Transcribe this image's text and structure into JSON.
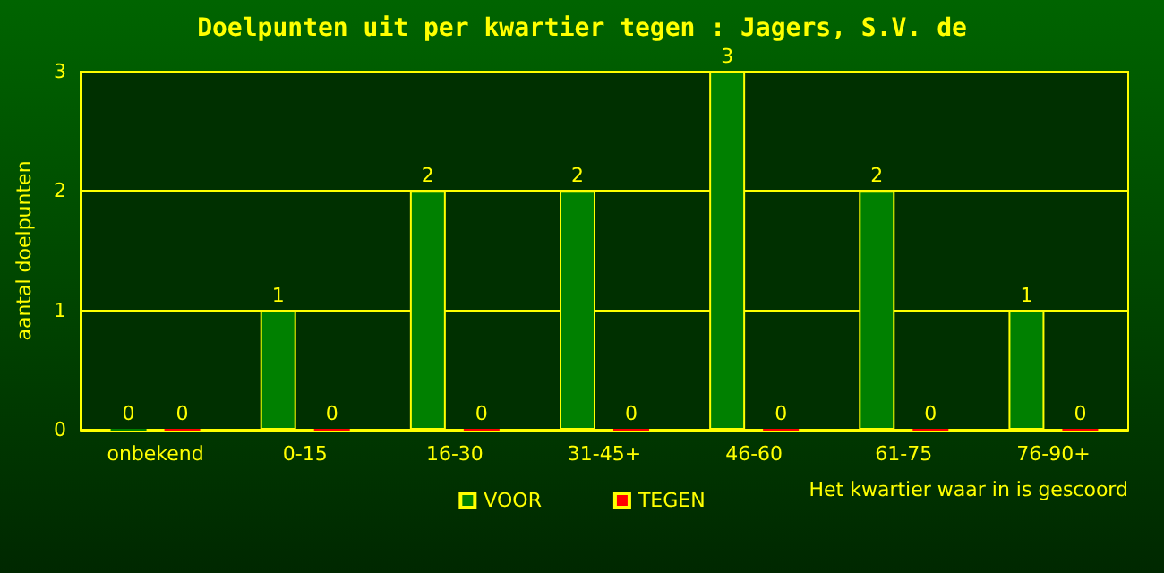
{
  "chart_data": {
    "type": "bar",
    "title": "Doelpunten uit per kwartier tegen : Jagers, S.V. de",
    "xlabel": "Het kwartier waar in is gescoord",
    "ylabel": "aantal doelpunten",
    "categories": [
      "onbekend",
      "0-15",
      "16-30",
      "31-45+",
      "46-60",
      "61-75",
      "76-90+"
    ],
    "series": [
      {
        "name": "VOOR",
        "color": "#008000",
        "values": [
          0,
          1,
          2,
          2,
          3,
          2,
          1
        ]
      },
      {
        "name": "TEGEN",
        "color": "#ff0000",
        "values": [
          0,
          0,
          0,
          0,
          0,
          0,
          0
        ]
      }
    ],
    "ylim": [
      0,
      3
    ],
    "yticks": [
      0,
      1,
      2,
      3
    ],
    "grid": "y",
    "legend": "bottom",
    "data_labels": true
  }
}
